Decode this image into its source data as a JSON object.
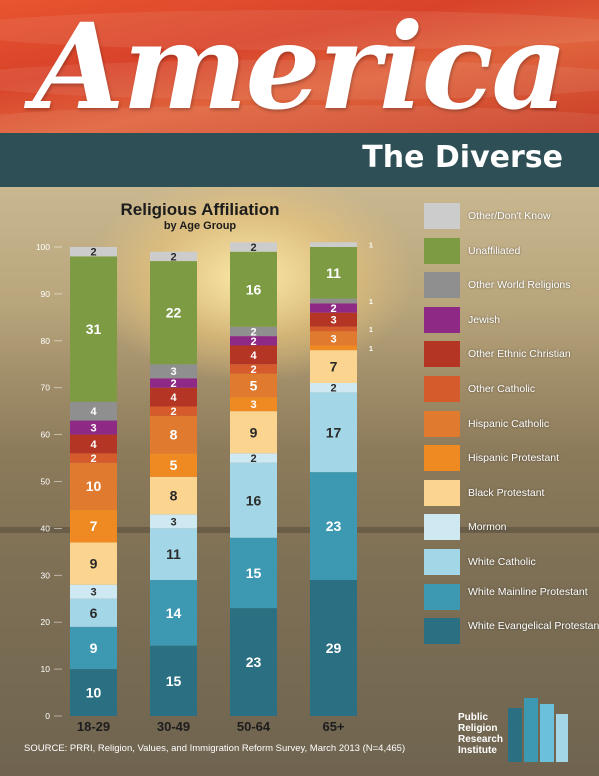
{
  "header": {
    "title_script": "America",
    "subtitle": "The Diverse"
  },
  "chart_data": {
    "type": "bar",
    "stacked": true,
    "title": "Religious Affiliation",
    "subtitle": "by Age Group",
    "categories": [
      "18-29",
      "30-49",
      "50-64",
      "65+"
    ],
    "ylim": [
      0,
      100
    ],
    "yticks": [
      0,
      10,
      20,
      30,
      40,
      50,
      60,
      70,
      80,
      90,
      100
    ],
    "series": [
      {
        "name": "White Evangelical Protestant",
        "color": "#2b6f82",
        "values": [
          10,
          15,
          23,
          29
        ]
      },
      {
        "name": "White Mainline Protestant",
        "color": "#3d98b2",
        "values": [
          9,
          14,
          15,
          23
        ]
      },
      {
        "name": "White Catholic",
        "color": "#a3d7e8",
        "values": [
          6,
          11,
          16,
          17
        ]
      },
      {
        "name": "Mormon",
        "color": "#cfe9f2",
        "values": [
          3,
          3,
          2,
          2
        ]
      },
      {
        "name": "Black Protestant",
        "color": "#fbd590",
        "values": [
          9,
          8,
          9,
          7
        ]
      },
      {
        "name": "Hispanic Protestant",
        "color": "#ef8a23",
        "values": [
          7,
          5,
          3,
          1
        ]
      },
      {
        "name": "Hispanic Catholic",
        "color": "#e07a2e",
        "values": [
          10,
          8,
          5,
          3
        ]
      },
      {
        "name": "Other Catholic",
        "color": "#d55a2c",
        "values": [
          2,
          2,
          2,
          1
        ]
      },
      {
        "name": "Other Ethnic Christian",
        "color": "#b53524",
        "values": [
          4,
          4,
          4,
          3
        ]
      },
      {
        "name": "Jewish",
        "color": "#8e2a85",
        "values": [
          3,
          2,
          2,
          2
        ]
      },
      {
        "name": "Other World Religions",
        "color": "#8f8f8f",
        "values": [
          4,
          3,
          2,
          1
        ]
      },
      {
        "name": "Unaffiliated",
        "color": "#7c9b42",
        "values": [
          31,
          22,
          16,
          11
        ]
      },
      {
        "name": "Other/Don't Know",
        "color": "#cccccc",
        "values": [
          2,
          2,
          2,
          1
        ]
      }
    ],
    "data_labels": [
      [
        "10",
        "15",
        "23",
        "29"
      ],
      [
        "9",
        "14",
        "15",
        "23"
      ],
      [
        "6",
        "11",
        "16",
        "17"
      ],
      [
        "3",
        "3",
        "2",
        "2"
      ],
      [
        "9",
        "8",
        "9",
        "7"
      ],
      [
        "7",
        "5",
        "3",
        "1"
      ],
      [
        "10",
        "8",
        "5",
        "3"
      ],
      [
        "2",
        "2",
        "2",
        "1"
      ],
      [
        "4",
        "4",
        "4",
        "3"
      ],
      [
        "3",
        "2",
        "2",
        "2"
      ],
      [
        "4",
        "3",
        "2",
        "1"
      ],
      [
        "31",
        "22",
        "16",
        "11"
      ],
      [
        "2",
        "2",
        "2",
        "1"
      ]
    ],
    "legend_order": [
      "Other/Don't Know",
      "Unaffiliated",
      "Other World Religions",
      "Jewish",
      "Other Ethnic Christian",
      "Other Catholic",
      "Hispanic Catholic",
      "Hispanic Protestant",
      "Black Protestant",
      "Mormon",
      "White Catholic",
      "White Mainline Protestant",
      "White Evangelical Protestant"
    ],
    "legend_position": "right"
  },
  "footer": {
    "source": "SOURCE: PRRI, Religion, Values, and Immigration Reform Survey, March 2013  (N=4,465)",
    "logo_text": "Public Religion Research Institute",
    "logo_colors": [
      "#2b6f82",
      "#3d98b2",
      "#6bc0dc",
      "#a3d7e8"
    ]
  }
}
